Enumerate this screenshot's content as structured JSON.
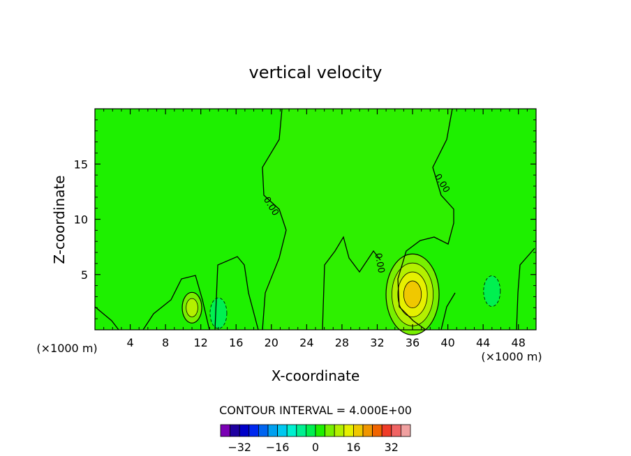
{
  "chart_data": {
    "type": "heatmap",
    "title": "vertical velocity",
    "xlabel": "X-coordinate",
    "ylabel": "Z-coordinate",
    "x_unit": "(×1000 m)",
    "x_unit_right": "(×1000 m)",
    "xlim": [
      0,
      50
    ],
    "ylim": [
      0,
      20
    ],
    "x_ticks": [
      4,
      8,
      12,
      16,
      20,
      24,
      28,
      32,
      36,
      40,
      44,
      48
    ],
    "y_ticks": [
      5,
      10,
      15
    ],
    "contour_interval_label": "CONTOUR INTERVAL = 4.000E+00",
    "contour_interval": 4.0,
    "zero_contour_label": "0.00",
    "colorbar": {
      "levels": [
        -36,
        -32,
        -28,
        -24,
        -20,
        -16,
        -12,
        -8,
        -4,
        0,
        4,
        8,
        12,
        16,
        20,
        24,
        28,
        32,
        36
      ],
      "colors": [
        "#7a00b4",
        "#1e00a0",
        "#0000c8",
        "#0028f0",
        "#0064f0",
        "#00a0f0",
        "#00c8f0",
        "#00f0d0",
        "#00f090",
        "#00f050",
        "#1ef000",
        "#78f000",
        "#b4f000",
        "#e6f000",
        "#f0c800",
        "#f09600",
        "#f06400",
        "#f03c28",
        "#f06464",
        "#f0a0a0"
      ],
      "tick_labels": [
        "−32",
        "−16",
        "0",
        "16",
        "32"
      ],
      "tick_values": [
        -32,
        -16,
        0,
        16,
        32
      ]
    },
    "background_range": [
      0,
      4
    ],
    "features": [
      {
        "kind": "updraft",
        "x": 36,
        "z": 3.2,
        "peak": 16
      },
      {
        "kind": "updraft",
        "x": 11,
        "z": 2.0,
        "peak": 5
      },
      {
        "kind": "downdraft",
        "x": 45,
        "z": 3.5,
        "peak": -4
      },
      {
        "kind": "downdraft",
        "x": 14,
        "z": 1.5,
        "peak": -2
      }
    ]
  }
}
